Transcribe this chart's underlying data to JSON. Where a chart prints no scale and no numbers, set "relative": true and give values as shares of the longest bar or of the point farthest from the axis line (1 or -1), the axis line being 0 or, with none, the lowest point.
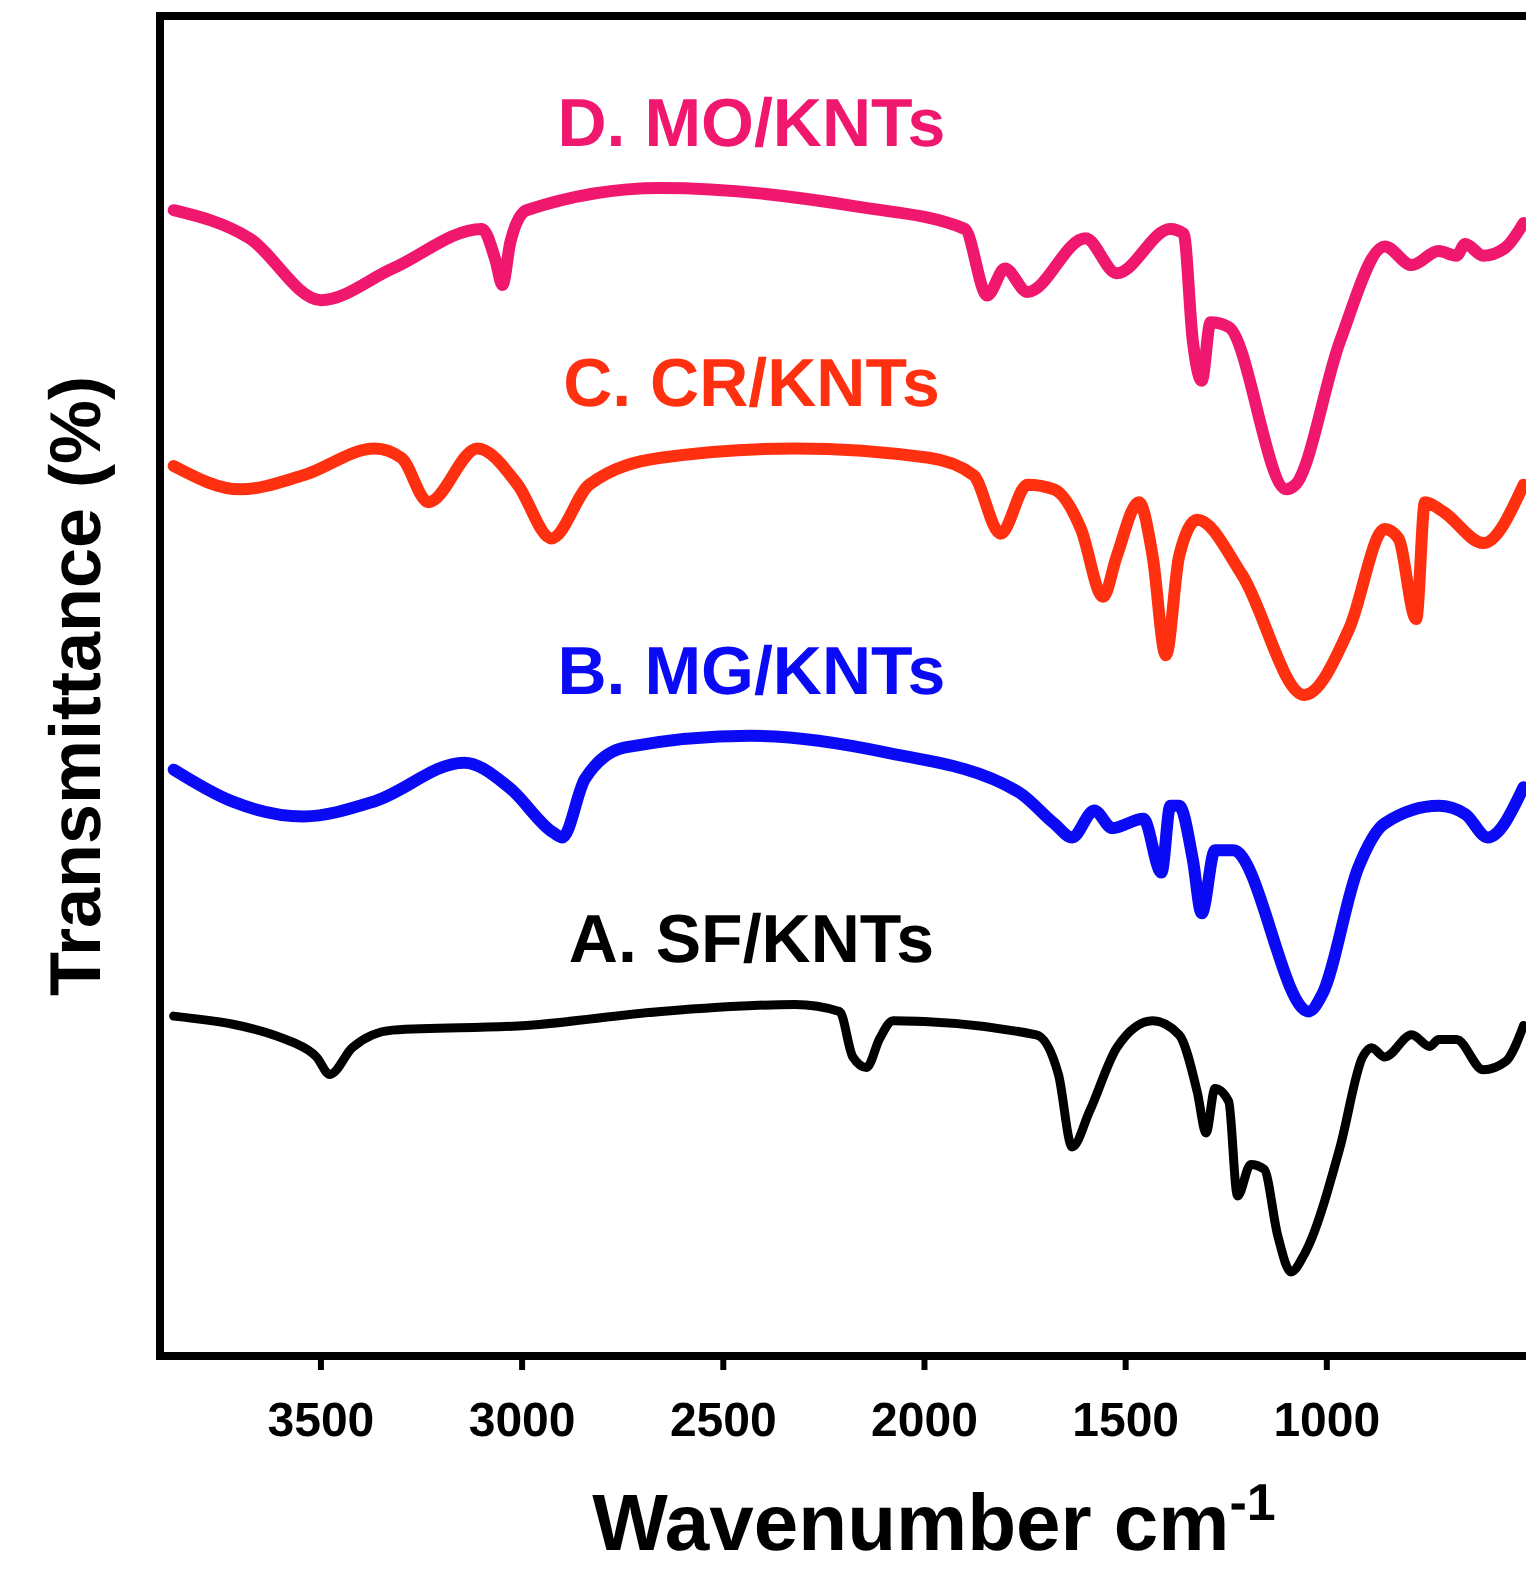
{
  "chart_data": {
    "type": "line",
    "relative": true,
    "xlabel": "Wavenumber cm$^{-1}$",
    "ylabel": "Transmittance (%)",
    "xlim": [
      3900,
      500
    ],
    "xticks": [
      3500,
      3000,
      2500,
      2000,
      1500,
      1000
    ],
    "grid": false,
    "series": [
      {
        "name": "D. MO/KNTs",
        "color": "#f0186e",
        "x": [
          3866,
          3678,
          3500,
          3322,
          3100,
          3066,
          3049,
          3029,
          2989,
          2655,
          2167,
          1900,
          1844,
          1800,
          1744,
          1600,
          1522,
          1389,
          1356,
          1333,
          1311,
          1289,
          1244,
          1100,
          1078,
          967,
          856,
          789,
          722,
          678,
          656,
          611,
          556,
          511
        ],
        "values": [
          0.981,
          0.957,
          0.904,
          0.931,
          0.965,
          0.938,
          0.917,
          0.954,
          0.981,
          1,
          0.984,
          0.965,
          0.908,
          0.931,
          0.911,
          0.957,
          0.927,
          0.965,
          0.961,
          0.869,
          0.835,
          0.885,
          0.881,
          0.742,
          0.746,
          0.869,
          0.95,
          0.934,
          0.946,
          0.942,
          0.952,
          0.942,
          0.949,
          0.97
        ]
      },
      {
        "name": "C. CR/KNTs",
        "color": "#ff3010",
        "x": [
          3866,
          3700,
          3544,
          3366,
          3300,
          3233,
          3111,
          3011,
          2927,
          2833,
          2655,
          2322,
          1989,
          1878,
          1811,
          1744,
          1678,
          1611,
          1556,
          1522,
          1467,
          1433,
          1400,
          1367,
          1322,
          1211,
          1056,
          944,
          856,
          822,
          778,
          756,
          711,
          611,
          511
        ],
        "values": [
          0.762,
          0.742,
          0.754,
          0.777,
          0.769,
          0.731,
          0.777,
          0.746,
          0.7,
          0.746,
          0.769,
          0.777,
          0.769,
          0.754,
          0.704,
          0.746,
          0.742,
          0.708,
          0.65,
          0.685,
          0.731,
          0.685,
          0.6,
          0.685,
          0.716,
          0.669,
          0.566,
          0.623,
          0.708,
          0.7,
          0.631,
          0.731,
          0.723,
          0.696,
          0.746
        ]
      },
      {
        "name": "B. MG/KNTs",
        "color": "#0a0af5",
        "x": [
          3866,
          3722,
          3544,
          3366,
          3144,
          3033,
          2922,
          2900,
          2844,
          2744,
          2433,
          2100,
          1767,
          1678,
          1633,
          1578,
          1533,
          1456,
          1411,
          1389,
          1367,
          1333,
          1311,
          1278,
          1233,
          1045,
          1011,
          922,
          856,
          722,
          656,
          600,
          511
        ],
        "values": [
          0.502,
          0.475,
          0.462,
          0.475,
          0.508,
          0.487,
          0.448,
          0.444,
          0.494,
          0.521,
          0.531,
          0.517,
          0.483,
          0.456,
          0.444,
          0.467,
          0.452,
          0.46,
          0.414,
          0.471,
          0.471,
          0.425,
          0.379,
          0.433,
          0.433,
          0.295,
          0.31,
          0.418,
          0.456,
          0.471,
          0.464,
          0.444,
          0.487
        ]
      },
      {
        "name": "A. SF/KNTs",
        "color": "#000000",
        "x": [
          3866,
          3566,
          3511,
          3478,
          3422,
          3322,
          2989,
          2655,
          2322,
          2211,
          2178,
          2144,
          2111,
          2078,
          1722,
          1667,
          1633,
          1589,
          1522,
          1433,
          1367,
          1322,
          1300,
          1278,
          1244,
          1222,
          1189,
          1156,
          1122,
          1089,
          1056,
          967,
          911,
          889,
          856,
          789,
          744,
          722,
          678,
          611,
          556,
          511
        ],
        "values": [
          0.291,
          0.268,
          0.256,
          0.241,
          0.264,
          0.279,
          0.283,
          0.295,
          0.301,
          0.295,
          0.256,
          0.247,
          0.272,
          0.287,
          0.275,
          0.241,
          0.179,
          0.21,
          0.264,
          0.287,
          0.275,
          0.226,
          0.191,
          0.229,
          0.218,
          0.137,
          0.164,
          0.16,
          0.103,
          0.072,
          0.087,
          0.179,
          0.256,
          0.264,
          0.256,
          0.275,
          0.265,
          0.271,
          0.271,
          0.245,
          0.252,
          0.283
        ]
      }
    ]
  }
}
